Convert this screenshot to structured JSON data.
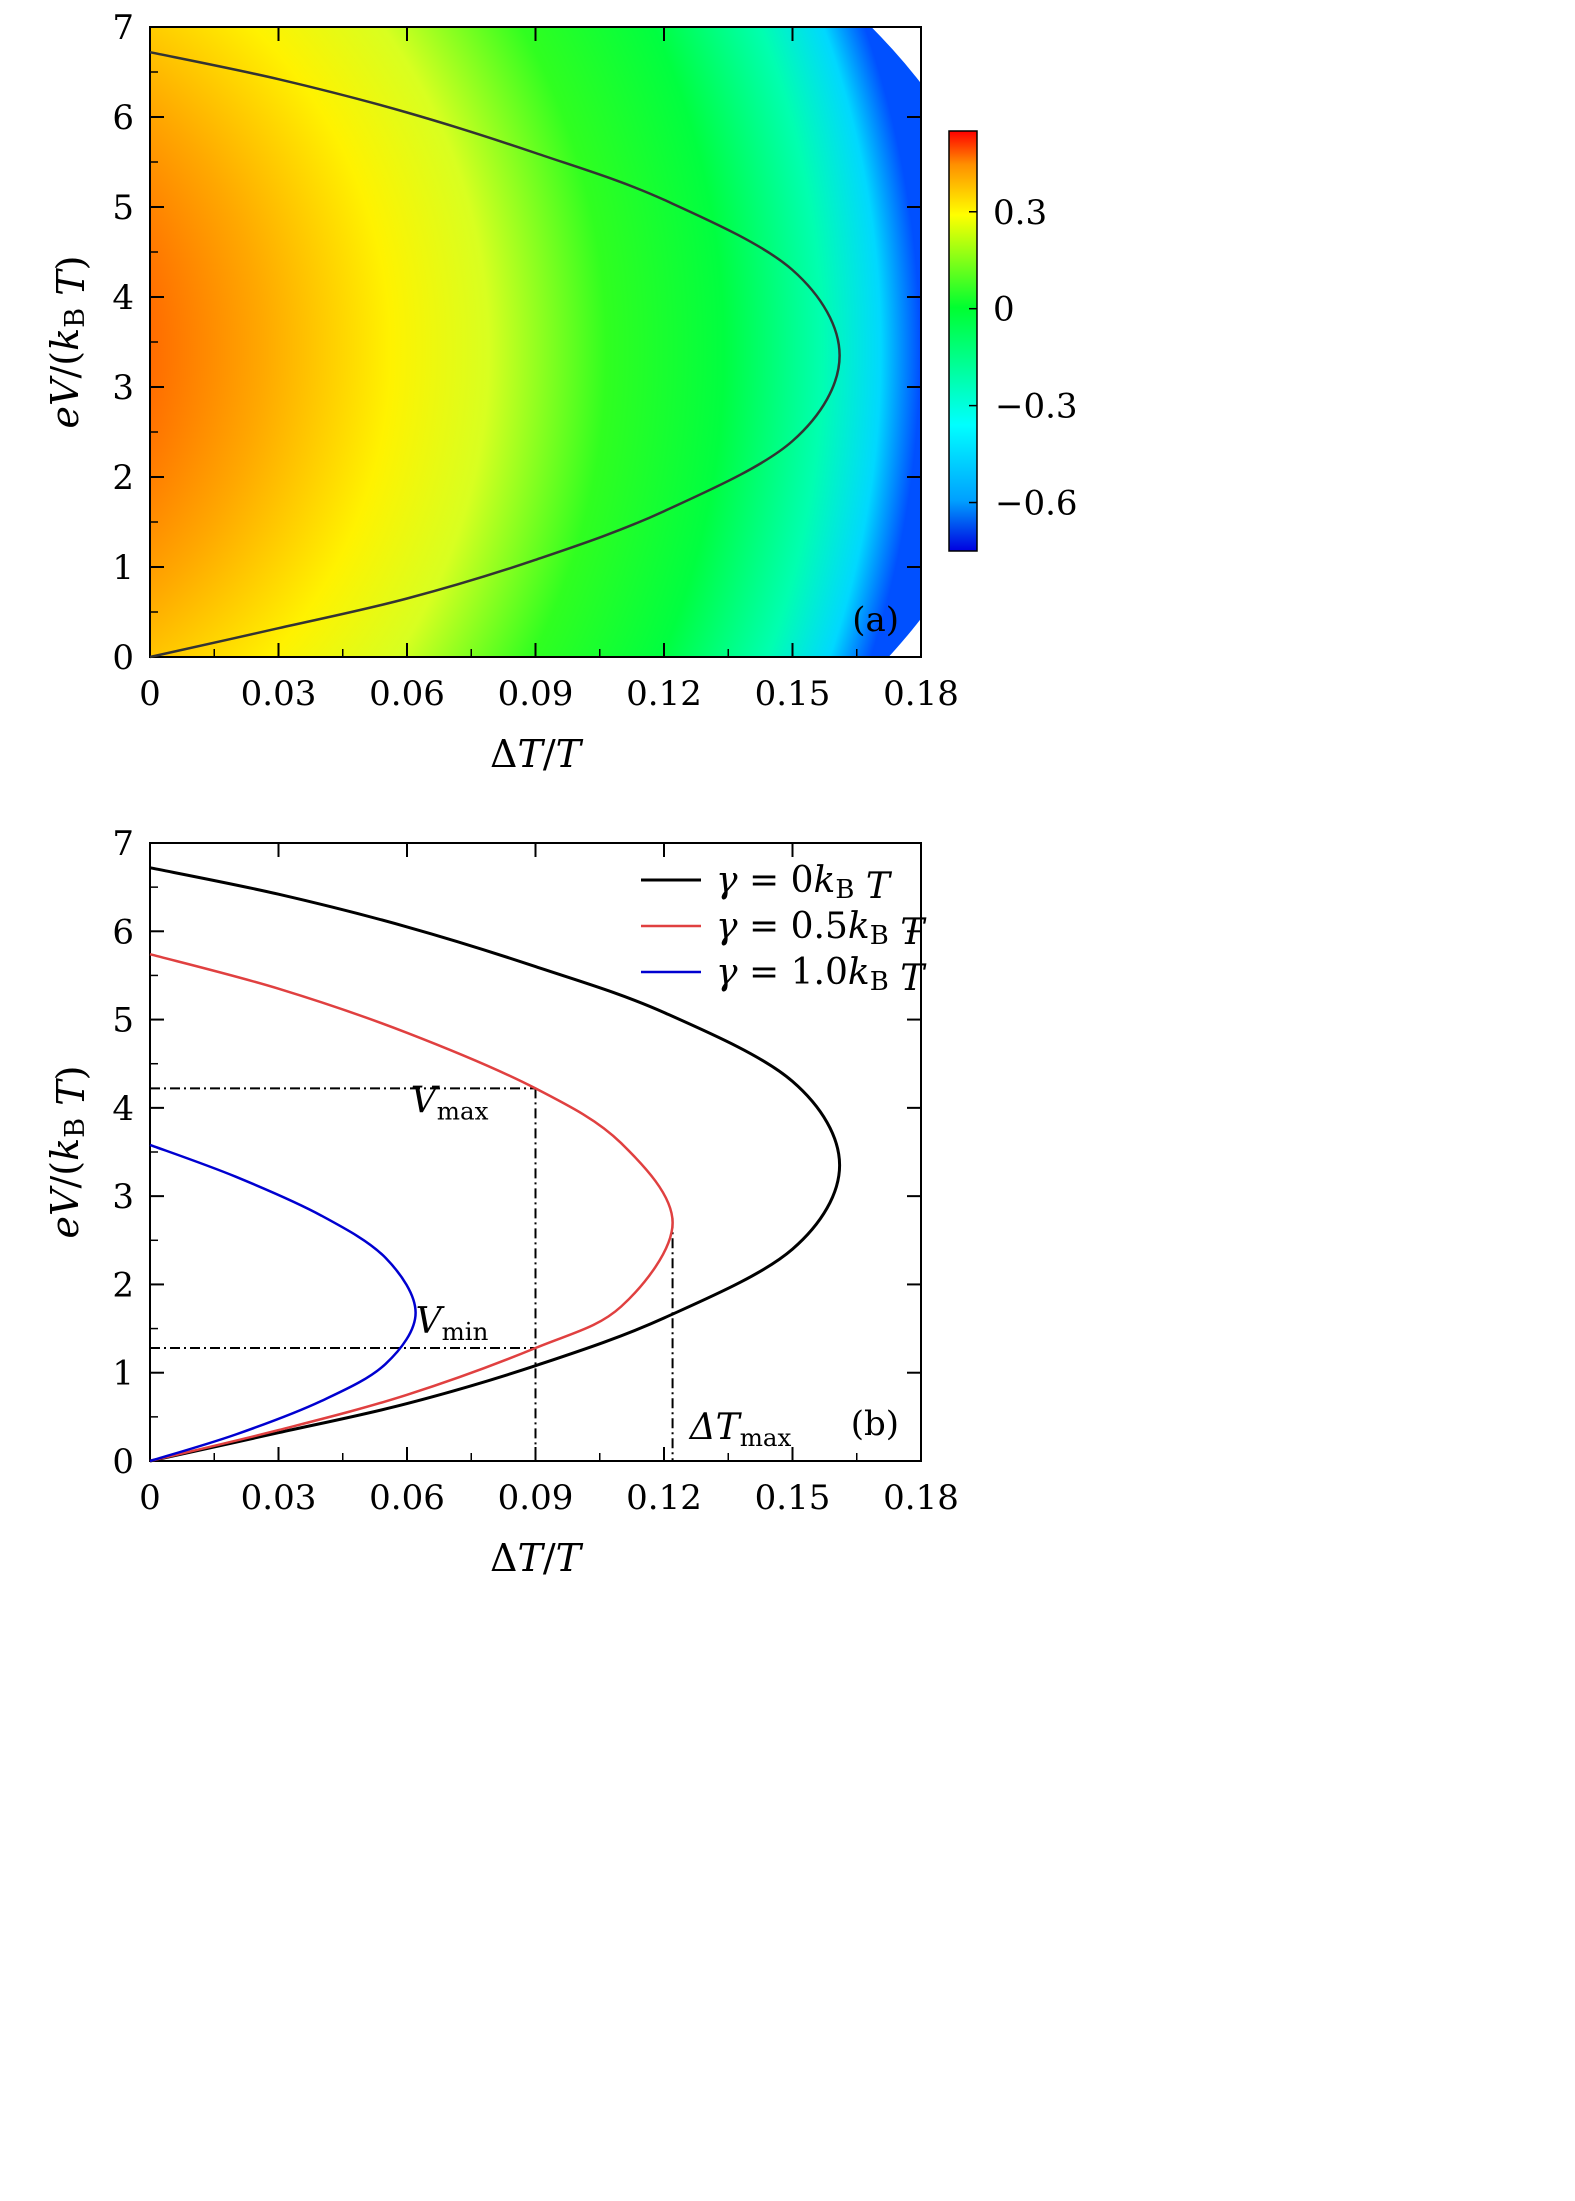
{
  "chart_data": [
    {
      "panel_label": "(a)",
      "type": "heatmap",
      "xlabel": "ΔT/T",
      "ylabel": "eV/(k_B T)",
      "xlim": [
        0,
        0.18
      ],
      "ylim": [
        0,
        7
      ],
      "x_ticks": [
        "0",
        "0.03",
        "0.06",
        "0.09",
        "0.12",
        "0.15",
        "0.18"
      ],
      "y_ticks": [
        "0",
        "1",
        "2",
        "3",
        "4",
        "5",
        "6",
        "7"
      ],
      "colorbar": {
        "range": [
          -0.75,
          0.55
        ],
        "ticks": [
          "0.3",
          "0",
          "−0.3",
          "−0.6"
        ],
        "tick_values": [
          0.3,
          0,
          -0.3,
          -0.6
        ],
        "colors": [
          "#0000e0",
          "#00a0ff",
          "#00ffff",
          "#00ff30",
          "#ffff00",
          "#ff9000",
          "#ff0000"
        ]
      },
      "zero_contour": {
        "color": "#333333",
        "points": [
          [
            0.0,
            0.0
          ],
          [
            0.03,
            0.32
          ],
          [
            0.06,
            0.65
          ],
          [
            0.09,
            1.08
          ],
          [
            0.12,
            1.62
          ],
          [
            0.15,
            2.4
          ],
          [
            0.161,
            3.35
          ],
          [
            0.15,
            4.3
          ],
          [
            0.12,
            5.08
          ],
          [
            0.09,
            5.6
          ],
          [
            0.06,
            6.05
          ],
          [
            0.03,
            6.42
          ],
          [
            0.0,
            6.72
          ]
        ]
      }
    },
    {
      "panel_label": "(b)",
      "type": "line",
      "xlabel": "ΔT/T",
      "ylabel": "eV/(k_B T)",
      "xlim": [
        0,
        0.18
      ],
      "ylim": [
        0,
        7
      ],
      "x_ticks": [
        "0",
        "0.03",
        "0.06",
        "0.09",
        "0.12",
        "0.15",
        "0.18"
      ],
      "y_ticks": [
        "0",
        "1",
        "2",
        "3",
        "4",
        "5",
        "6",
        "7"
      ],
      "legend_position": "top-right",
      "series": [
        {
          "name": "γ = 0k_B T",
          "color": "#000000",
          "points": [
            [
              0.0,
              0.0
            ],
            [
              0.03,
              0.32
            ],
            [
              0.06,
              0.65
            ],
            [
              0.09,
              1.08
            ],
            [
              0.12,
              1.62
            ],
            [
              0.15,
              2.4
            ],
            [
              0.161,
              3.35
            ],
            [
              0.15,
              4.3
            ],
            [
              0.12,
              5.08
            ],
            [
              0.09,
              5.6
            ],
            [
              0.06,
              6.05
            ],
            [
              0.03,
              6.42
            ],
            [
              0.0,
              6.72
            ]
          ]
        },
        {
          "name": "γ = 0.5k_B T",
          "color": "#e04040",
          "points": [
            [
              0.0,
              0.0
            ],
            [
              0.03,
              0.35
            ],
            [
              0.06,
              0.75
            ],
            [
              0.09,
              1.28
            ],
            [
              0.11,
              1.75
            ],
            [
              0.122,
              2.7
            ],
            [
              0.11,
              3.6
            ],
            [
              0.09,
              4.22
            ],
            [
              0.06,
              4.85
            ],
            [
              0.03,
              5.35
            ],
            [
              0.0,
              5.74
            ]
          ]
        },
        {
          "name": "γ = 1.0k_B T",
          "color": "#0000d0",
          "points": [
            [
              0.0,
              0.0
            ],
            [
              0.02,
              0.3
            ],
            [
              0.04,
              0.68
            ],
            [
              0.055,
              1.1
            ],
            [
              0.062,
              1.68
            ],
            [
              0.055,
              2.3
            ],
            [
              0.04,
              2.78
            ],
            [
              0.02,
              3.22
            ],
            [
              0.0,
              3.58
            ]
          ]
        }
      ],
      "reference_lines": [
        {
          "from": [
            0,
            4.22
          ],
          "to": [
            0.09,
            4.22
          ]
        },
        {
          "from": [
            0.09,
            4.22
          ],
          "to": [
            0.09,
            0
          ]
        },
        {
          "from": [
            0,
            1.28
          ],
          "to": [
            0.09,
            1.28
          ]
        },
        {
          "from": [
            0.122,
            2.75
          ],
          "to": [
            0.122,
            0
          ]
        }
      ],
      "annotations": [
        {
          "base": "V",
          "sub": "max",
          "x": 0.079,
          "y": 3.95
        },
        {
          "base": "V",
          "sub": "min",
          "x": 0.079,
          "y": 1.45
        },
        {
          "base": "ΔT",
          "sub": "max",
          "x": 0.126,
          "y": 0.25
        }
      ]
    }
  ]
}
